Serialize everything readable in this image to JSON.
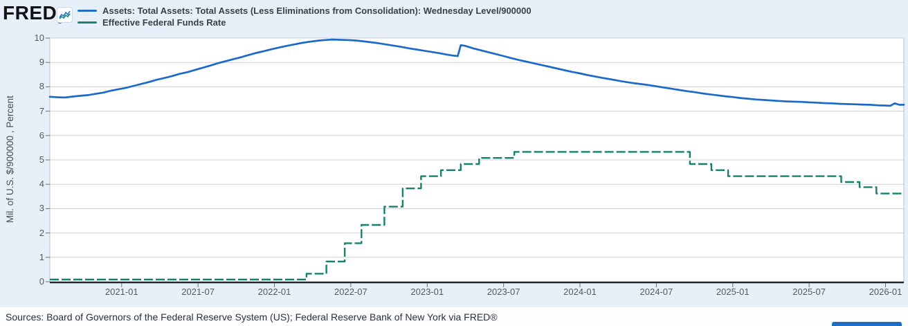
{
  "header": {
    "logo": "FRED",
    "registered": "®",
    "legend": [
      {
        "label": "Assets: Total Assets: Total Assets (Less Eliminations from Consolidation): Wednesday Level/900000",
        "color": "#2470c8"
      },
      {
        "label": "Effective Federal Funds Rate",
        "color": "#1b8472"
      }
    ]
  },
  "y_axis": {
    "title": "Mil. of U.S. $/900000 , Percent"
  },
  "footer": {
    "sources_text": "Sources: Board of Governors of the Federal Reserve System (US); Federal Reserve Bank of New York via FRED®"
  },
  "partial_button": {
    "color": "#1d6fc4"
  },
  "colors": {
    "page_bg": "#e7eff9",
    "plot_bg": "#ffffff",
    "gridline": "#ccd1d7",
    "plot_border": "#b9c0c8",
    "zero_axis": "#22272c",
    "tick": "#6b7177",
    "assets_line": "#1b6ac9",
    "effr_line": "#15806c"
  },
  "chart_data": {
    "type": "line",
    "title": "",
    "xlabel": "",
    "ylabel": "Mil. of U.S. $/900000 , Percent",
    "ylim": [
      0,
      10
    ],
    "grid": "horizontal",
    "legend_position": "top-left",
    "x_domain_years": [
      2020.53,
      2026.12
    ],
    "y_ticks": [
      0,
      1,
      2,
      3,
      4,
      5,
      6,
      7,
      8,
      9,
      10
    ],
    "x_ticks": [
      {
        "year": 2021.0,
        "label": "2021-01"
      },
      {
        "year": 2021.5,
        "label": "2021-07"
      },
      {
        "year": 2022.0,
        "label": "2022-01"
      },
      {
        "year": 2022.5,
        "label": "2022-07"
      },
      {
        "year": 2023.0,
        "label": "2023-01"
      },
      {
        "year": 2023.5,
        "label": "2023-07"
      },
      {
        "year": 2024.0,
        "label": "2024-01"
      },
      {
        "year": 2024.5,
        "label": "2024-07"
      },
      {
        "year": 2025.0,
        "label": "2025-01"
      },
      {
        "year": 2025.5,
        "label": "2025-07"
      },
      {
        "year": 2026.0,
        "label": "2026-01"
      }
    ],
    "series": [
      {
        "name": "Assets: Total Assets: Total Assets (Less Eliminations from Consolidation): Wednesday Level/900000",
        "color": "#1b6ac9",
        "line_style": "solid",
        "render": "line",
        "points": [
          [
            2020.53,
            7.59
          ],
          [
            2020.58,
            7.57
          ],
          [
            2020.63,
            7.56
          ],
          [
            2020.68,
            7.6
          ],
          [
            2020.73,
            7.63
          ],
          [
            2020.78,
            7.66
          ],
          [
            2020.83,
            7.71
          ],
          [
            2020.88,
            7.76
          ],
          [
            2020.93,
            7.84
          ],
          [
            2020.98,
            7.9
          ],
          [
            2021.03,
            7.96
          ],
          [
            2021.08,
            8.04
          ],
          [
            2021.13,
            8.12
          ],
          [
            2021.18,
            8.2
          ],
          [
            2021.23,
            8.29
          ],
          [
            2021.28,
            8.36
          ],
          [
            2021.33,
            8.44
          ],
          [
            2021.38,
            8.53
          ],
          [
            2021.43,
            8.6
          ],
          [
            2021.48,
            8.69
          ],
          [
            2021.53,
            8.78
          ],
          [
            2021.58,
            8.87
          ],
          [
            2021.63,
            8.97
          ],
          [
            2021.68,
            9.05
          ],
          [
            2021.73,
            9.13
          ],
          [
            2021.78,
            9.21
          ],
          [
            2021.83,
            9.3
          ],
          [
            2021.88,
            9.39
          ],
          [
            2021.93,
            9.46
          ],
          [
            2021.98,
            9.54
          ],
          [
            2022.03,
            9.61
          ],
          [
            2022.08,
            9.68
          ],
          [
            2022.13,
            9.74
          ],
          [
            2022.18,
            9.8
          ],
          [
            2022.23,
            9.85
          ],
          [
            2022.28,
            9.89
          ],
          [
            2022.33,
            9.92
          ],
          [
            2022.38,
            9.94
          ],
          [
            2022.43,
            9.93
          ],
          [
            2022.48,
            9.92
          ],
          [
            2022.53,
            9.9
          ],
          [
            2022.58,
            9.87
          ],
          [
            2022.63,
            9.83
          ],
          [
            2022.68,
            9.79
          ],
          [
            2022.73,
            9.74
          ],
          [
            2022.78,
            9.69
          ],
          [
            2022.83,
            9.64
          ],
          [
            2022.88,
            9.58
          ],
          [
            2022.93,
            9.53
          ],
          [
            2022.98,
            9.48
          ],
          [
            2023.03,
            9.43
          ],
          [
            2023.08,
            9.38
          ],
          [
            2023.13,
            9.32
          ],
          [
            2023.17,
            9.28
          ],
          [
            2023.2,
            9.26
          ],
          [
            2023.22,
            9.71
          ],
          [
            2023.25,
            9.68
          ],
          [
            2023.3,
            9.58
          ],
          [
            2023.35,
            9.5
          ],
          [
            2023.4,
            9.42
          ],
          [
            2023.45,
            9.34
          ],
          [
            2023.5,
            9.26
          ],
          [
            2023.55,
            9.18
          ],
          [
            2023.6,
            9.1
          ],
          [
            2023.65,
            9.03
          ],
          [
            2023.7,
            8.96
          ],
          [
            2023.75,
            8.89
          ],
          [
            2023.8,
            8.82
          ],
          [
            2023.85,
            8.75
          ],
          [
            2023.9,
            8.68
          ],
          [
            2023.95,
            8.61
          ],
          [
            2024.0,
            8.55
          ],
          [
            2024.05,
            8.48
          ],
          [
            2024.1,
            8.42
          ],
          [
            2024.15,
            8.36
          ],
          [
            2024.2,
            8.31
          ],
          [
            2024.25,
            8.25
          ],
          [
            2024.3,
            8.2
          ],
          [
            2024.35,
            8.15
          ],
          [
            2024.4,
            8.11
          ],
          [
            2024.45,
            8.07
          ],
          [
            2024.5,
            8.02
          ],
          [
            2024.55,
            7.97
          ],
          [
            2024.6,
            7.92
          ],
          [
            2024.65,
            7.87
          ],
          [
            2024.7,
            7.82
          ],
          [
            2024.75,
            7.78
          ],
          [
            2024.8,
            7.73
          ],
          [
            2024.85,
            7.69
          ],
          [
            2024.9,
            7.65
          ],
          [
            2024.95,
            7.61
          ],
          [
            2025.0,
            7.58
          ],
          [
            2025.05,
            7.54
          ],
          [
            2025.1,
            7.51
          ],
          [
            2025.15,
            7.48
          ],
          [
            2025.2,
            7.46
          ],
          [
            2025.25,
            7.44
          ],
          [
            2025.3,
            7.42
          ],
          [
            2025.35,
            7.4
          ],
          [
            2025.4,
            7.39
          ],
          [
            2025.45,
            7.38
          ],
          [
            2025.5,
            7.36
          ],
          [
            2025.55,
            7.35
          ],
          [
            2025.6,
            7.33
          ],
          [
            2025.65,
            7.32
          ],
          [
            2025.7,
            7.3
          ],
          [
            2025.75,
            7.29
          ],
          [
            2025.8,
            7.28
          ],
          [
            2025.85,
            7.27
          ],
          [
            2025.9,
            7.26
          ],
          [
            2025.95,
            7.24
          ],
          [
            2026.0,
            7.23
          ],
          [
            2026.03,
            7.22
          ],
          [
            2026.06,
            7.32
          ],
          [
            2026.09,
            7.26
          ],
          [
            2026.12,
            7.26
          ]
        ]
      },
      {
        "name": "Effective Federal Funds Rate",
        "color": "#15806c",
        "line_style": "dashed",
        "render": "step",
        "points": [
          [
            2020.53,
            0.09
          ],
          [
            2022.21,
            0.33
          ],
          [
            2022.34,
            0.83
          ],
          [
            2022.46,
            1.58
          ],
          [
            2022.57,
            2.33
          ],
          [
            2022.72,
            3.08
          ],
          [
            2022.84,
            3.83
          ],
          [
            2022.96,
            4.33
          ],
          [
            2023.09,
            4.58
          ],
          [
            2023.22,
            4.83
          ],
          [
            2023.34,
            5.08
          ],
          [
            2023.57,
            5.33
          ],
          [
            2024.72,
            4.83
          ],
          [
            2024.86,
            4.58
          ],
          [
            2024.97,
            4.33
          ],
          [
            2025.71,
            4.09
          ],
          [
            2025.83,
            3.88
          ],
          [
            2025.94,
            3.62
          ]
        ],
        "x_end": 2026.12
      }
    ]
  }
}
